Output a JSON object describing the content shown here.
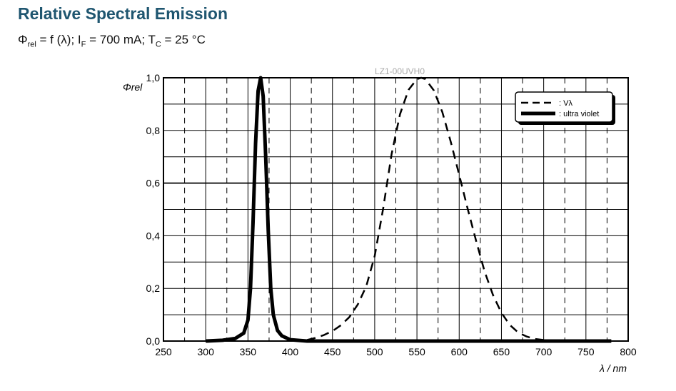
{
  "title": "Relative Spectral Emission",
  "subtitle": {
    "phi": "Φ",
    "phi_sub": "rel",
    "part1": " = f (λ); I",
    "if_sub": "F",
    "part2": " = 700 mA; T",
    "tc_sub": "C",
    "part3": " = 25 °C"
  },
  "chart_data": {
    "type": "line",
    "title": "LZ1-00UVH0",
    "xlabel": "λ / nm",
    "ylabel": "Φrel",
    "xlim": [
      250,
      800
    ],
    "ylim": [
      0,
      1.0
    ],
    "xticks": [
      "250",
      "300",
      "350",
      "400",
      "450",
      "500",
      "550",
      "600",
      "650",
      "700",
      "750",
      "800"
    ],
    "yticks": [
      "0,0",
      "0,2",
      "0,4",
      "0,6",
      "0,8",
      "1,0"
    ],
    "grid": true,
    "legend_position": "top-right",
    "series": [
      {
        "name": ": Vλ",
        "style": "dashed",
        "color": "#000000",
        "x": [
          420,
          430,
          440,
          450,
          460,
          470,
          480,
          490,
          500,
          510,
          520,
          530,
          540,
          550,
          555,
          560,
          570,
          580,
          590,
          600,
          610,
          620,
          630,
          640,
          650,
          660,
          670,
          680,
          690,
          700,
          720,
          740,
          780
        ],
        "y": [
          0.004,
          0.012,
          0.023,
          0.038,
          0.06,
          0.091,
          0.139,
          0.208,
          0.323,
          0.503,
          0.71,
          0.862,
          0.954,
          0.995,
          1.0,
          0.995,
          0.952,
          0.87,
          0.757,
          0.631,
          0.503,
          0.381,
          0.265,
          0.175,
          0.107,
          0.061,
          0.032,
          0.017,
          0.008,
          0.004,
          0.001,
          0.0,
          0.0
        ]
      },
      {
        "name": ": ultra violet",
        "style": "solid-thick",
        "color": "#000000",
        "x": [
          300,
          320,
          335,
          345,
          350,
          353,
          356,
          359,
          362,
          365,
          368,
          371,
          374,
          377,
          380,
          385,
          390,
          400,
          420,
          500,
          600,
          700,
          780
        ],
        "y": [
          0,
          0.003,
          0.01,
          0.03,
          0.08,
          0.2,
          0.45,
          0.75,
          0.95,
          1.0,
          0.93,
          0.7,
          0.42,
          0.2,
          0.1,
          0.04,
          0.02,
          0.005,
          0,
          0,
          0,
          0,
          0
        ]
      }
    ]
  }
}
